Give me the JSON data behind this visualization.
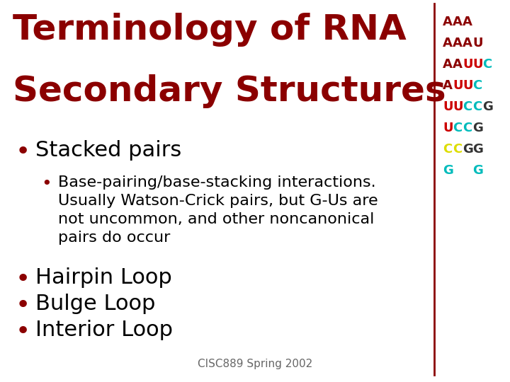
{
  "title_line1": "Terminology of RNA",
  "title_line2": "Secondary Structures",
  "title_color": "#8B0000",
  "background_color": "#FFFFFF",
  "bullet_color": "#8B0000",
  "text_color": "#000000",
  "footer_text": "CISC889 Spring 2002",
  "footer_color": "#666666",
  "bullet1": "Stacked pairs",
  "bullet1_color": "#000000",
  "sub_bullet1_line1": "Base-pairing/base-stacking interactions.",
  "sub_bullet1_line2": "Usually Watson-Crick pairs, but G-Us are",
  "sub_bullet1_line3": "not uncommon, and other noncanonical",
  "sub_bullet1_line4": "pairs do occur",
  "sub_bullet1_color": "#000000",
  "bullet2": "Hairpin Loop",
  "bullet3": "Bulge Loop",
  "bullet4": "Interior Loop",
  "rna_lines": [
    {
      "chars": [
        "A",
        "A",
        "A"
      ],
      "colors": [
        "#8B0000",
        "#8B0000",
        "#8B0000"
      ]
    },
    {
      "chars": [
        "A",
        "A",
        "A",
        "U"
      ],
      "colors": [
        "#8B0000",
        "#8B0000",
        "#8B0000",
        "#8B0000"
      ]
    },
    {
      "chars": [
        "A",
        "A",
        "U",
        "U",
        "C"
      ],
      "colors": [
        "#8B0000",
        "#8B0000",
        "#CC0000",
        "#CC0000",
        "#00BBBB"
      ]
    },
    {
      "chars": [
        "A",
        "U",
        "U",
        "C"
      ],
      "colors": [
        "#8B0000",
        "#CC0000",
        "#CC0000",
        "#00BBBB"
      ]
    },
    {
      "chars": [
        "U",
        "U",
        "C",
        "C",
        "G"
      ],
      "colors": [
        "#CC0000",
        "#CC0000",
        "#00BBBB",
        "#00BBBB",
        "#333333"
      ]
    },
    {
      "chars": [
        "U",
        "C",
        "C",
        "G"
      ],
      "colors": [
        "#CC0000",
        "#00BBBB",
        "#00BBBB",
        "#333333"
      ]
    },
    {
      "chars": [
        "C",
        "C",
        "G",
        "G"
      ],
      "colors": [
        "#DDDD00",
        "#DDDD00",
        "#333333",
        "#333333"
      ]
    },
    {
      "chars": [
        "G",
        " ",
        " ",
        "G"
      ],
      "colors": [
        "#00BBBB",
        "#00BBBB",
        "#00BBBB",
        "#00BBBB"
      ]
    }
  ],
  "divider_color": "#8B0000"
}
